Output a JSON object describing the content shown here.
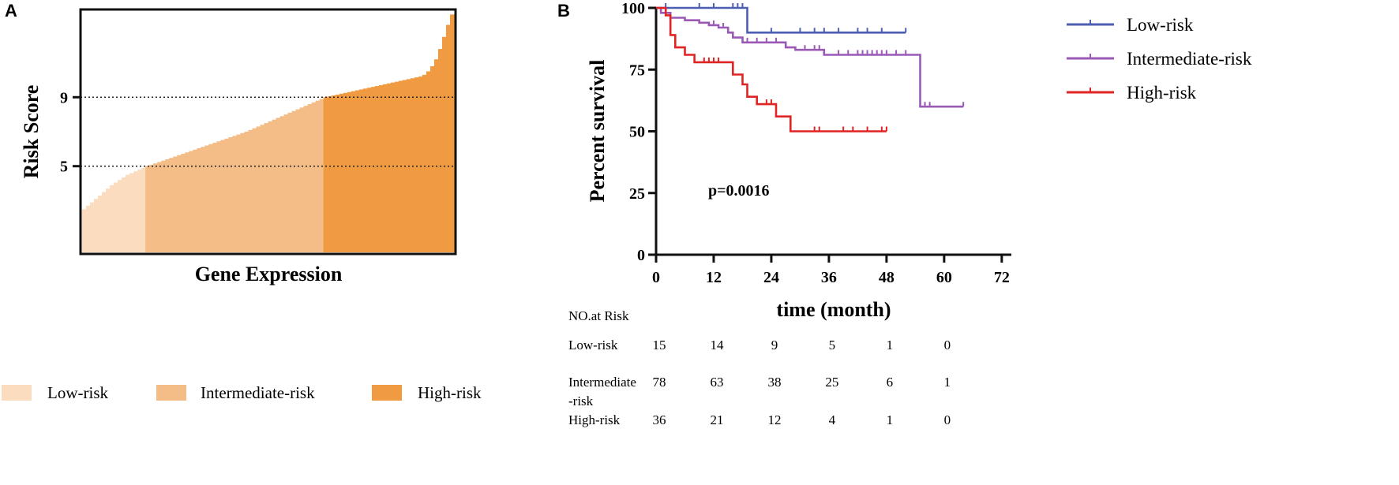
{
  "chart_data": [
    {
      "panel": "A",
      "type": "bar",
      "title": "",
      "xlabel": "Gene Expression",
      "ylabel": "Risk Score",
      "yticks": [
        5,
        9
      ],
      "ylim": [
        0,
        14
      ],
      "thresholds": [
        5,
        9
      ],
      "groups": [
        {
          "name": "Low-risk",
          "color": "#fbdcbf"
        },
        {
          "name": "Intermediate-risk",
          "color": "#f4bd87"
        },
        {
          "name": "High-risk",
          "color": "#f09b42"
        }
      ],
      "values": [
        2.5,
        2.7,
        2.9,
        3.1,
        3.3,
        3.5,
        3.7,
        3.9,
        4.05,
        4.2,
        4.35,
        4.5,
        4.6,
        4.7,
        4.8,
        4.9,
        5.0,
        5.08,
        5.16,
        5.24,
        5.32,
        5.4,
        5.48,
        5.56,
        5.64,
        5.72,
        5.8,
        5.88,
        5.96,
        6.04,
        6.12,
        6.2,
        6.28,
        6.36,
        6.44,
        6.52,
        6.6,
        6.68,
        6.76,
        6.84,
        6.92,
        7.0,
        7.1,
        7.2,
        7.3,
        7.4,
        7.5,
        7.6,
        7.7,
        7.8,
        7.9,
        8.0,
        8.1,
        8.2,
        8.3,
        8.4,
        8.5,
        8.6,
        8.7,
        8.8,
        8.9,
        9.0,
        9.05,
        9.1,
        9.15,
        9.2,
        9.25,
        9.3,
        9.35,
        9.4,
        9.45,
        9.5,
        9.55,
        9.6,
        9.65,
        9.7,
        9.75,
        9.8,
        9.85,
        9.9,
        9.95,
        10.0,
        10.05,
        10.1,
        10.15,
        10.2,
        10.3,
        10.5,
        10.8,
        11.2,
        11.8,
        12.5,
        13.2,
        13.8
      ]
    },
    {
      "panel": "B",
      "type": "line",
      "title": "",
      "xlabel": "time (month)",
      "ylabel": "Percent survival",
      "xticks": [
        0,
        12,
        24,
        36,
        48,
        60,
        72
      ],
      "yticks": [
        0,
        25,
        50,
        75,
        100
      ],
      "xlim": [
        0,
        74
      ],
      "ylim": [
        0,
        100
      ],
      "annotation": "p=0.0016",
      "series": [
        {
          "name": "Low-risk",
          "color": "#4c5fb3",
          "steps": [
            [
              0,
              100
            ],
            [
              19,
              100
            ],
            [
              19,
              90
            ],
            [
              52,
              90
            ]
          ],
          "censored": [
            [
              2,
              100
            ],
            [
              9,
              100
            ],
            [
              12,
              100
            ],
            [
              16,
              100
            ],
            [
              17,
              100
            ],
            [
              18,
              100
            ],
            [
              24,
              90
            ],
            [
              30,
              90
            ],
            [
              33,
              90
            ],
            [
              35,
              90
            ],
            [
              38,
              90
            ],
            [
              42,
              90
            ],
            [
              44,
              90
            ],
            [
              47,
              90
            ],
            [
              52,
              90
            ]
          ]
        },
        {
          "name": "Intermediate-risk",
          "color": "#9b59b6",
          "steps": [
            [
              0,
              100
            ],
            [
              1,
              100
            ],
            [
              1,
              98
            ],
            [
              3,
              98
            ],
            [
              3,
              96
            ],
            [
              6,
              96
            ],
            [
              6,
              95
            ],
            [
              9,
              95
            ],
            [
              9,
              94
            ],
            [
              11,
              94
            ],
            [
              11,
              93
            ],
            [
              13,
              93
            ],
            [
              13,
              92
            ],
            [
              15,
              92
            ],
            [
              15,
              90
            ],
            [
              16,
              90
            ],
            [
              16,
              88
            ],
            [
              18,
              88
            ],
            [
              18,
              86
            ],
            [
              27,
              86
            ],
            [
              27,
              84
            ],
            [
              29,
              84
            ],
            [
              29,
              83
            ],
            [
              35,
              83
            ],
            [
              35,
              81
            ],
            [
              55,
              81
            ],
            [
              55,
              60
            ],
            [
              64,
              60
            ]
          ],
          "censored": [
            [
              12,
              93
            ],
            [
              14,
              92
            ],
            [
              19,
              86
            ],
            [
              21,
              86
            ],
            [
              23,
              86
            ],
            [
              25,
              86
            ],
            [
              31,
              83
            ],
            [
              33,
              83
            ],
            [
              34,
              83
            ],
            [
              38,
              81
            ],
            [
              40,
              81
            ],
            [
              42,
              81
            ],
            [
              43,
              81
            ],
            [
              44,
              81
            ],
            [
              45,
              81
            ],
            [
              46,
              81
            ],
            [
              47,
              81
            ],
            [
              48,
              81
            ],
            [
              50,
              81
            ],
            [
              52,
              81
            ],
            [
              56,
              60
            ],
            [
              57,
              60
            ],
            [
              64,
              60
            ]
          ]
        },
        {
          "name": "High-risk",
          "color": "#e02424",
          "steps": [
            [
              0,
              100
            ],
            [
              2,
              100
            ],
            [
              2,
              97
            ],
            [
              3,
              97
            ],
            [
              3,
              89
            ],
            [
              4,
              89
            ],
            [
              4,
              84
            ],
            [
              6,
              84
            ],
            [
              6,
              81
            ],
            [
              8,
              81
            ],
            [
              8,
              78
            ],
            [
              16,
              78
            ],
            [
              16,
              73
            ],
            [
              18,
              73
            ],
            [
              18,
              69
            ],
            [
              19,
              69
            ],
            [
              19,
              64
            ],
            [
              21,
              64
            ],
            [
              21,
              61
            ],
            [
              25,
              61
            ],
            [
              25,
              56
            ],
            [
              28,
              56
            ],
            [
              28,
              50
            ],
            [
              48,
              50
            ]
          ],
          "censored": [
            [
              10,
              78
            ],
            [
              11,
              78
            ],
            [
              12,
              78
            ],
            [
              13,
              78
            ],
            [
              23,
              61
            ],
            [
              24,
              61
            ],
            [
              33,
              50
            ],
            [
              34,
              50
            ],
            [
              39,
              50
            ],
            [
              41,
              50
            ],
            [
              44,
              50
            ],
            [
              47,
              50
            ],
            [
              48,
              50
            ]
          ]
        }
      ],
      "risk_table": {
        "header": "NO.at Risk",
        "time_points": [
          0,
          12,
          24,
          36,
          48,
          60
        ],
        "rows": [
          {
            "label": "Low-risk",
            "values": [
              "15",
              "14",
              "9",
              "5",
              "1",
              "0"
            ]
          },
          {
            "label": "Intermediate-risk",
            "values": [
              "78",
              "63",
              "38",
              "25",
              "6",
              "1"
            ]
          },
          {
            "label": "High-risk",
            "values": [
              "36",
              "21",
              "12",
              "4",
              "1",
              "0"
            ]
          }
        ]
      }
    }
  ],
  "figure": {
    "panel_a_letter": "A",
    "panel_b_letter": "B",
    "legend_a": [
      {
        "label": "Low-risk",
        "color": "#fbdcbf"
      },
      {
        "label": "Intermediate-risk",
        "color": "#f4bd87"
      },
      {
        "label": "High-risk",
        "color": "#f09b42"
      }
    ],
    "risk_labels_display": [
      {
        "line1": "Low-risk",
        "line2": ""
      },
      {
        "line1": "Intermediate",
        "line2": "-risk"
      },
      {
        "line1": "High-risk",
        "line2": ""
      }
    ]
  }
}
